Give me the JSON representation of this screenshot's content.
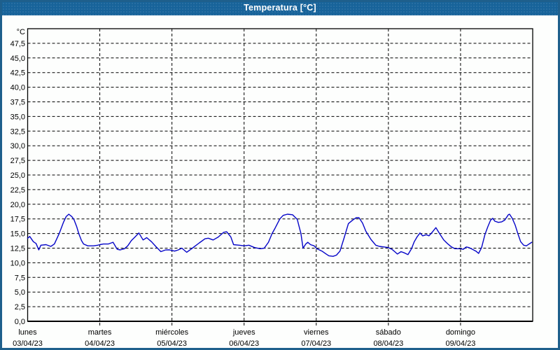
{
  "window": {
    "title": "Temperatura [°C]",
    "titlebar_color": "#17639A",
    "border_color": "#1E5F8C",
    "background_color": "#fdfefd"
  },
  "chart_data": {
    "type": "line",
    "title": "Temperatura [°C]",
    "y_unit_label": "°C",
    "ylim": [
      0,
      50
    ],
    "ytick_step": 2.5,
    "ytick_labels": [
      "0,0",
      "2,5",
      "5,0",
      "7,5",
      "10,0",
      "12,5",
      "15,0",
      "17,5",
      "20,0",
      "22,5",
      "25,0",
      "27,5",
      "30,0",
      "32,5",
      "35,0",
      "37,5",
      "40,0",
      "42,5",
      "45,0",
      "47,5"
    ],
    "x_total_hours": 168,
    "hours_per_day": 24,
    "x_days": [
      {
        "name": "lunes",
        "date": "03/04/23"
      },
      {
        "name": "martes",
        "date": "04/04/23"
      },
      {
        "name": "miércoles",
        "date": "05/04/23"
      },
      {
        "name": "jueves",
        "date": "06/04/23"
      },
      {
        "name": "viernes",
        "date": "07/04/23"
      },
      {
        "name": "sábado",
        "date": "08/04/23"
      },
      {
        "name": "domingo",
        "date": "09/04/23"
      }
    ],
    "grid": "dashed",
    "legend": "none",
    "line_color": "#0404C8",
    "series": [
      {
        "name": "Temperatura",
        "points": [
          [
            0,
            14.2
          ],
          [
            0.7,
            14.5
          ],
          [
            1.9,
            13.6
          ],
          [
            2.8,
            13.3
          ],
          [
            3.7,
            12.2
          ],
          [
            4.4,
            13.0
          ],
          [
            6.1,
            13.1
          ],
          [
            7.7,
            12.8
          ],
          [
            8.9,
            13.2
          ],
          [
            10.5,
            15.0
          ],
          [
            11.9,
            16.9
          ],
          [
            12.8,
            17.9
          ],
          [
            13.7,
            18.3
          ],
          [
            14.7,
            17.9
          ],
          [
            15.4,
            17.4
          ],
          [
            16.3,
            16.2
          ],
          [
            17,
            15.0
          ],
          [
            17.9,
            13.8
          ],
          [
            18.6,
            13.2
          ],
          [
            20,
            12.9
          ],
          [
            21.9,
            12.9
          ],
          [
            23.3,
            13.0
          ],
          [
            24,
            13.1
          ],
          [
            25.2,
            13.2
          ],
          [
            26.8,
            13.2
          ],
          [
            28.4,
            13.5
          ],
          [
            29.8,
            12.3
          ],
          [
            30.8,
            12.2
          ],
          [
            32.2,
            12.4
          ],
          [
            33.3,
            12.9
          ],
          [
            34.5,
            13.8
          ],
          [
            35.7,
            14.4
          ],
          [
            37,
            15.1
          ],
          [
            38.4,
            13.9
          ],
          [
            39.6,
            14.3
          ],
          [
            41.2,
            13.6
          ],
          [
            42.6,
            12.8
          ],
          [
            44.3,
            11.9
          ],
          [
            45.9,
            12.2
          ],
          [
            47.3,
            12.2
          ],
          [
            48,
            12.1
          ],
          [
            48.9,
            12.0
          ],
          [
            50.1,
            12.2
          ],
          [
            51.3,
            12.5
          ],
          [
            52.9,
            11.8
          ],
          [
            54.8,
            12.5
          ],
          [
            57.1,
            13.4
          ],
          [
            59,
            14.1
          ],
          [
            60.1,
            14.2
          ],
          [
            61.7,
            13.9
          ],
          [
            63.4,
            14.4
          ],
          [
            65.2,
            15.2
          ],
          [
            66.2,
            15.3
          ],
          [
            67.6,
            14.4
          ],
          [
            68.5,
            13.1
          ],
          [
            70.4,
            13.0
          ],
          [
            72,
            12.9
          ],
          [
            73.6,
            13.0
          ],
          [
            75.5,
            12.6
          ],
          [
            77.4,
            12.4
          ],
          [
            78.7,
            12.5
          ],
          [
            80.1,
            13.5
          ],
          [
            81.3,
            15.0
          ],
          [
            82.3,
            15.9
          ],
          [
            83.9,
            17.5
          ],
          [
            85,
            18.1
          ],
          [
            86.4,
            18.3
          ],
          [
            88.1,
            18.2
          ],
          [
            89.7,
            17.4
          ],
          [
            90.4,
            16.0
          ],
          [
            90.9,
            15.0
          ],
          [
            91.6,
            12.5
          ],
          [
            92.5,
            13.2
          ],
          [
            93.2,
            13.5
          ],
          [
            94.1,
            13.1
          ],
          [
            95.3,
            12.9
          ],
          [
            96.2,
            12.4
          ],
          [
            97.9,
            12.0
          ],
          [
            99.3,
            11.5
          ],
          [
            100.2,
            11.2
          ],
          [
            101.6,
            11.1
          ],
          [
            102.7,
            11.3
          ],
          [
            103.9,
            12.0
          ],
          [
            105.3,
            14.3
          ],
          [
            106.7,
            16.7
          ],
          [
            108.1,
            17.3
          ],
          [
            109.3,
            17.7
          ],
          [
            110.2,
            17.7
          ],
          [
            111.4,
            16.8
          ],
          [
            112.5,
            15.4
          ],
          [
            114.2,
            14.0
          ],
          [
            115.8,
            13.0
          ],
          [
            117,
            12.8
          ],
          [
            118.6,
            12.7
          ],
          [
            120,
            12.6
          ],
          [
            121.2,
            12.3
          ],
          [
            122.1,
            11.9
          ],
          [
            123,
            11.5
          ],
          [
            124.2,
            11.9
          ],
          [
            125.3,
            11.7
          ],
          [
            126.5,
            11.4
          ],
          [
            127.7,
            12.4
          ],
          [
            128.6,
            13.6
          ],
          [
            129.5,
            14.4
          ],
          [
            130.5,
            15.1
          ],
          [
            131.4,
            14.6
          ],
          [
            132.6,
            14.8
          ],
          [
            133.5,
            14.6
          ],
          [
            134.7,
            15.3
          ],
          [
            135.8,
            16.0
          ],
          [
            137,
            15.0
          ],
          [
            138.4,
            13.9
          ],
          [
            139.8,
            13.2
          ],
          [
            141,
            12.7
          ],
          [
            142.1,
            12.4
          ],
          [
            143.5,
            12.4
          ],
          [
            144,
            12.4
          ],
          [
            144.9,
            12.3
          ],
          [
            145.9,
            12.7
          ],
          [
            146.8,
            12.6
          ],
          [
            148,
            12.3
          ],
          [
            149.1,
            12.0
          ],
          [
            150,
            11.6
          ],
          [
            151,
            12.6
          ],
          [
            152.1,
            14.8
          ],
          [
            153.1,
            16.2
          ],
          [
            154,
            17.3
          ],
          [
            154.7,
            17.6
          ],
          [
            155.4,
            17.1
          ],
          [
            156.6,
            16.9
          ],
          [
            157.7,
            17.0
          ],
          [
            158.7,
            17.3
          ],
          [
            159.9,
            18.2
          ],
          [
            160.3,
            18.3
          ],
          [
            161.2,
            17.6
          ],
          [
            162.2,
            16.4
          ],
          [
            163.1,
            14.9
          ],
          [
            164,
            13.6
          ],
          [
            165,
            13.0
          ],
          [
            165.9,
            12.9
          ],
          [
            166.8,
            13.2
          ],
          [
            167.7,
            13.5
          ]
        ]
      }
    ]
  }
}
